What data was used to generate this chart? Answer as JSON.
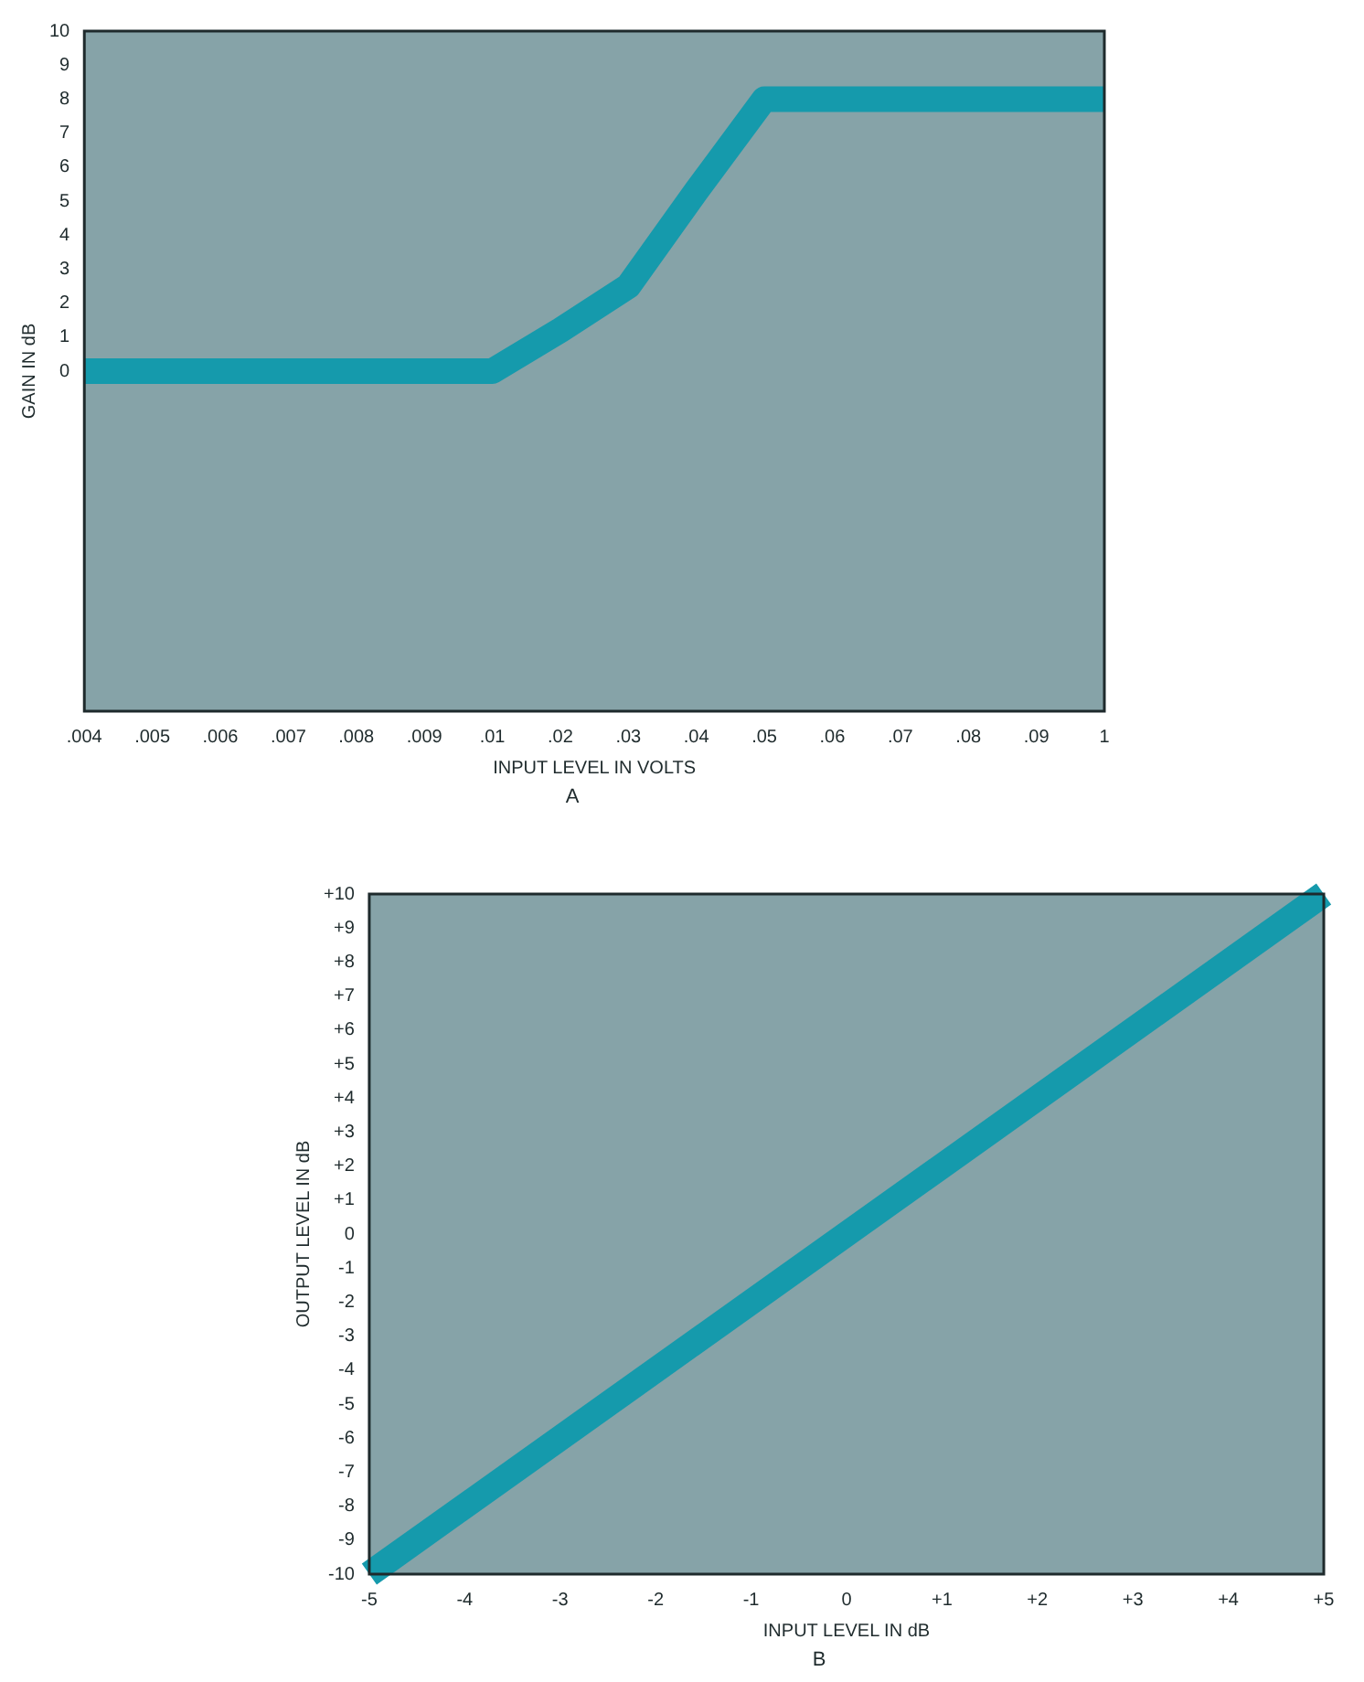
{
  "chart_data": [
    {
      "type": "line",
      "xlabel": "INPUT LEVEL IN VOLTS",
      "ylabel": "GAIN IN dB",
      "categories": [
        ".004",
        ".005",
        ".006",
        ".007",
        ".008",
        ".009",
        ".01",
        ".02",
        ".03",
        ".04",
        ".05",
        ".06",
        ".07",
        ".08",
        ".09",
        "1"
      ],
      "series": [
        {
          "color": "#159aac",
          "values": [
            0,
            0,
            0,
            0,
            0,
            0,
            0,
            1.2,
            2.5,
            5.3,
            8,
            8,
            8,
            8,
            8,
            8
          ]
        }
      ],
      "ylim": [
        -10,
        10
      ],
      "yticks": [
        0,
        1,
        2,
        3,
        4,
        5,
        6,
        7,
        8,
        9,
        10
      ],
      "grid": false,
      "legend": false,
      "marker": "none",
      "annotations": [
        "A"
      ]
    },
    {
      "type": "line",
      "xlabel": "INPUT LEVEL IN dB",
      "ylabel": "OUTPUT LEVEL IN dB",
      "x": [
        -5,
        5
      ],
      "series": [
        {
          "color": "#159aac",
          "values": [
            -10,
            10
          ]
        }
      ],
      "xlim": [
        -5,
        5
      ],
      "xticks": [
        -5,
        -4,
        -3,
        -2,
        -1,
        0,
        {
          "value": 1,
          "label": "+1"
        },
        {
          "value": 2,
          "label": "+2"
        },
        {
          "value": 3,
          "label": "+3"
        },
        {
          "value": 4,
          "label": "+4"
        },
        {
          "value": 5,
          "label": "+5"
        }
      ],
      "ylim": [
        -10,
        10
      ],
      "yticks": [
        -10,
        -9,
        -8,
        -7,
        -6,
        -5,
        -4,
        -3,
        -2,
        -1,
        0,
        {
          "value": 1,
          "label": "+1"
        },
        {
          "value": 2,
          "label": "+2"
        },
        {
          "value": 3,
          "label": "+3"
        },
        {
          "value": 4,
          "label": "+4"
        },
        {
          "value": 5,
          "label": "+5"
        },
        {
          "value": 6,
          "label": "+6"
        },
        {
          "value": 7,
          "label": "+7"
        },
        {
          "value": 8,
          "label": "+8"
        },
        {
          "value": 9,
          "label": "+9"
        },
        {
          "value": 10,
          "label": "+10"
        }
      ],
      "grid": false,
      "legend": false,
      "marker": "none",
      "annotations": [
        "B"
      ]
    }
  ]
}
